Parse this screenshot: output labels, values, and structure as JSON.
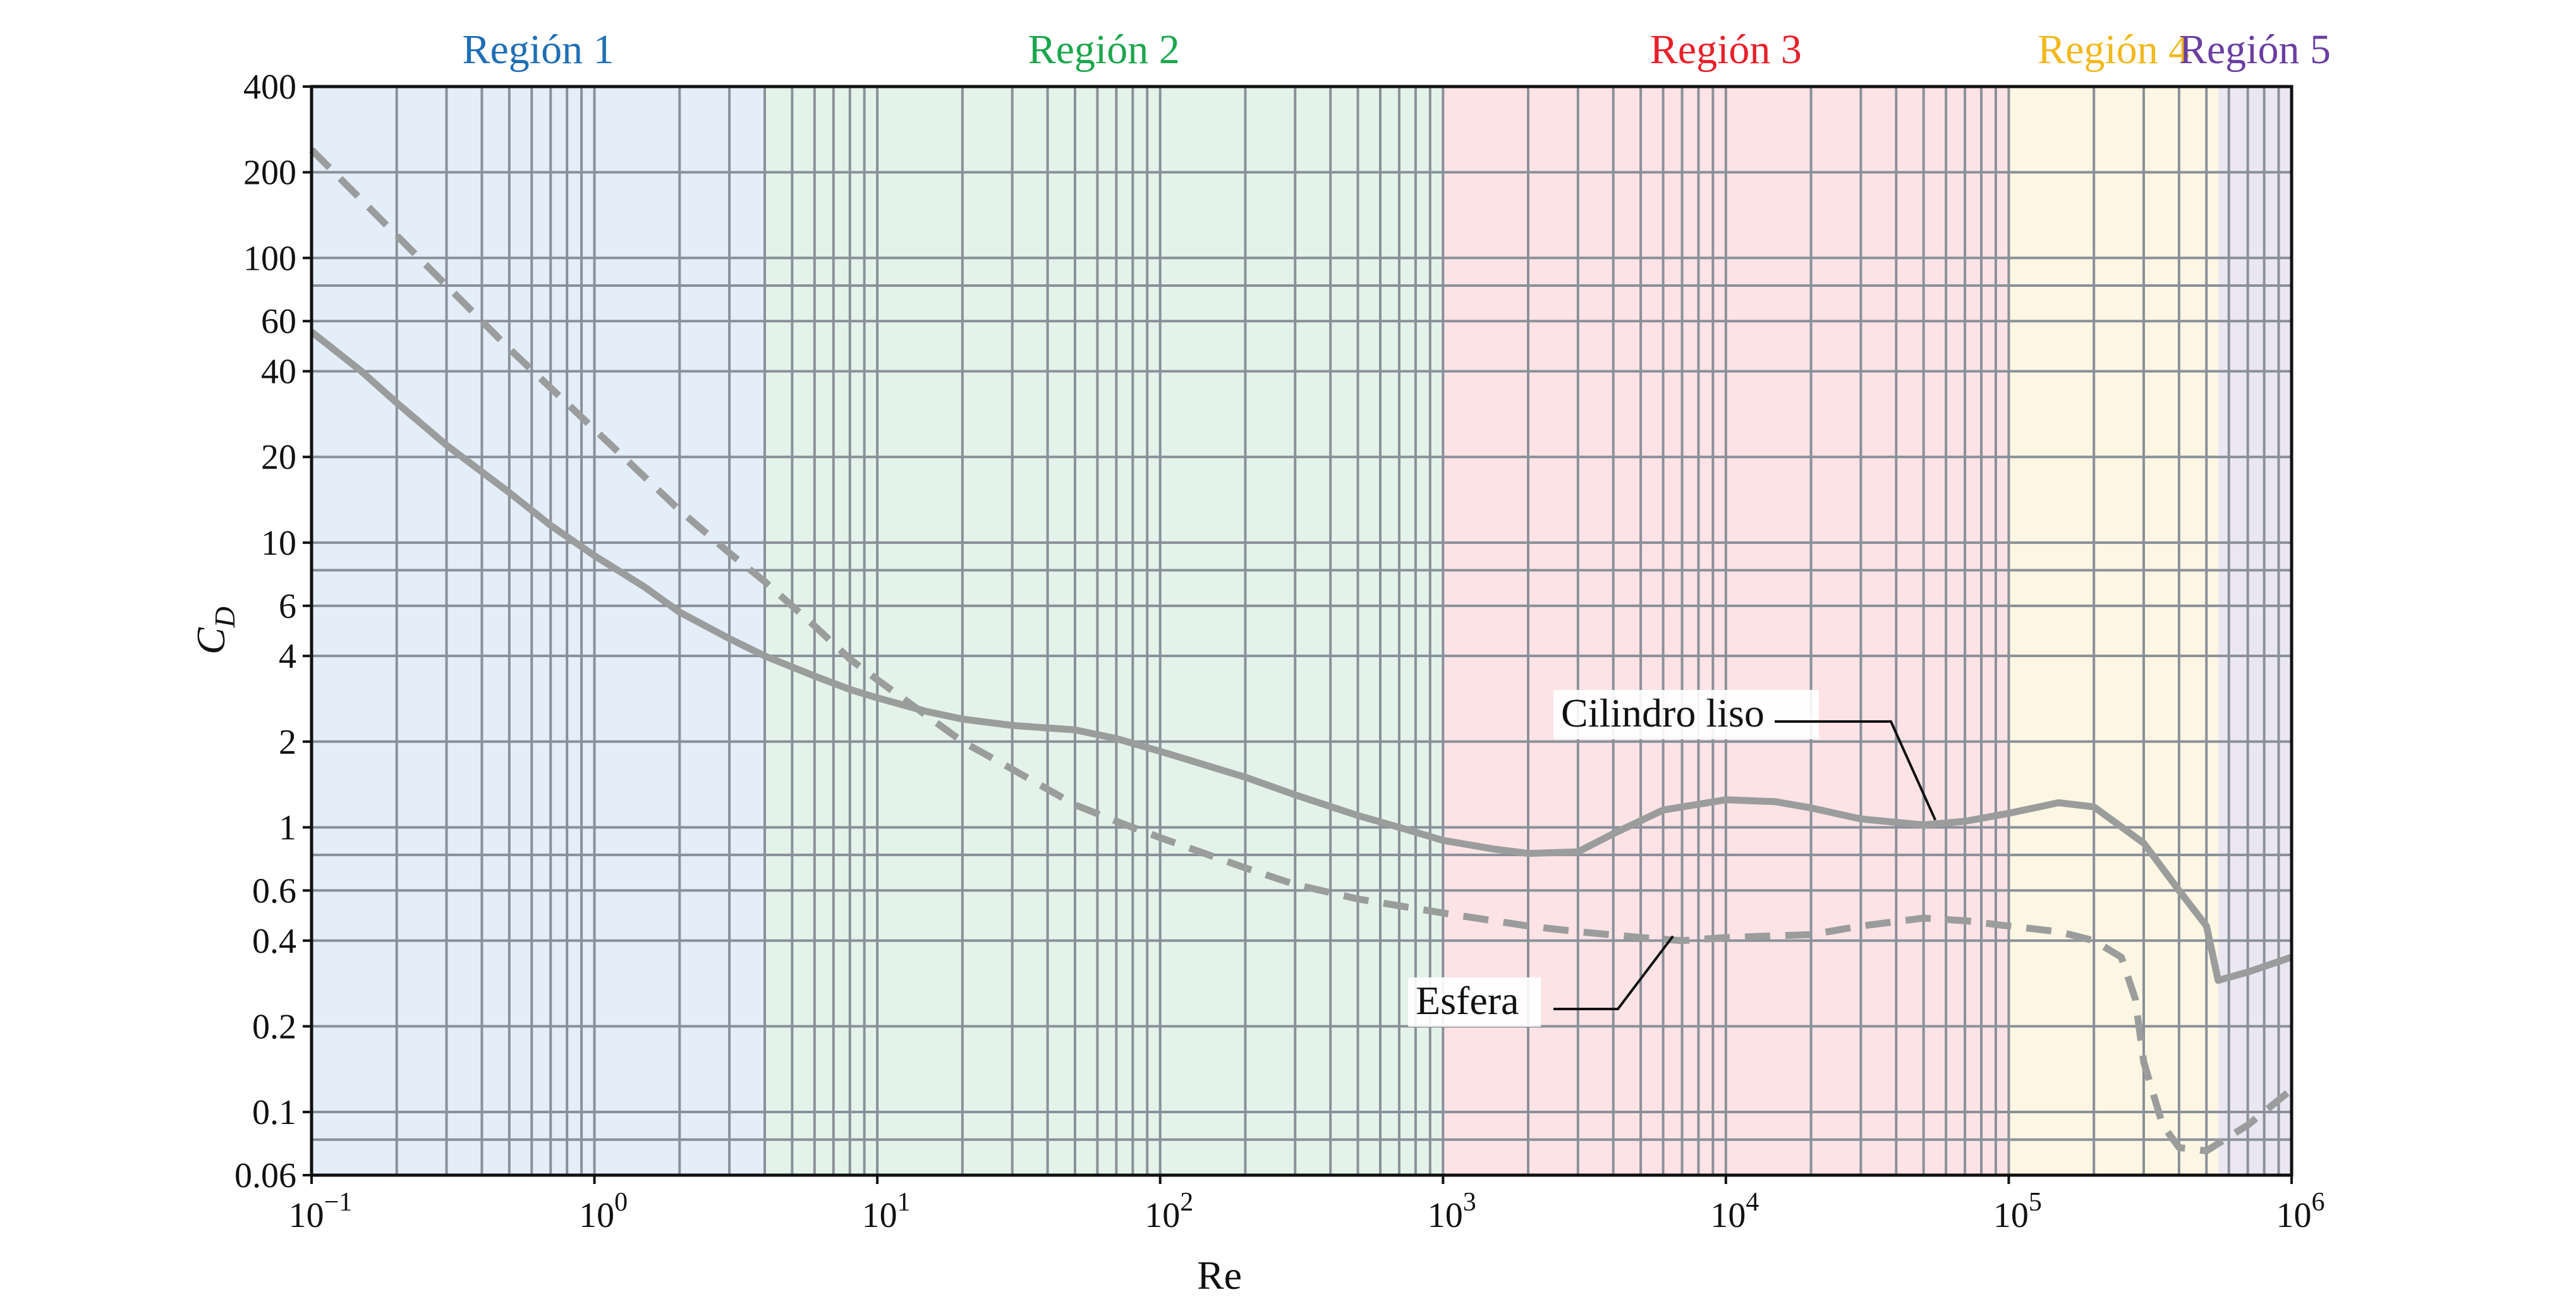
{
  "chart_data": {
    "type": "line",
    "x_scale": "log",
    "y_scale": "log",
    "xlabel": "Re",
    "ylabel": {
      "main": "C",
      "sub": "D"
    },
    "xlim": [
      0.1,
      1000000
    ],
    "ylim": [
      0.06,
      400
    ],
    "grid": true,
    "x_ticks": [
      {
        "value": 0.1,
        "base": "10",
        "exp": "−1"
      },
      {
        "value": 1,
        "base": "10",
        "exp": "0"
      },
      {
        "value": 10,
        "base": "10",
        "exp": "1"
      },
      {
        "value": 100,
        "base": "10",
        "exp": "2"
      },
      {
        "value": 1000,
        "base": "10",
        "exp": "3"
      },
      {
        "value": 10000,
        "base": "10",
        "exp": "4"
      },
      {
        "value": 100000,
        "base": "10",
        "exp": "5"
      },
      {
        "value": 1000000,
        "base": "10",
        "exp": "6"
      }
    ],
    "y_ticks": [
      {
        "value": 400,
        "label": "400"
      },
      {
        "value": 200,
        "label": "200"
      },
      {
        "value": 100,
        "label": "100"
      },
      {
        "value": 60,
        "label": "60"
      },
      {
        "value": 40,
        "label": "40"
      },
      {
        "value": 20,
        "label": "20"
      },
      {
        "value": 10,
        "label": "10"
      },
      {
        "value": 6,
        "label": "6"
      },
      {
        "value": 4,
        "label": "4"
      },
      {
        "value": 2,
        "label": "2"
      },
      {
        "value": 1,
        "label": "1"
      },
      {
        "value": 0.6,
        "label": "0.6"
      },
      {
        "value": 0.4,
        "label": "0.4"
      },
      {
        "value": 0.2,
        "label": "0.2"
      },
      {
        "value": 0.1,
        "label": "0.1"
      },
      {
        "value": 0.06,
        "label": "0.06"
      }
    ],
    "y_grid_values": [
      400,
      200,
      100,
      80,
      60,
      40,
      20,
      10,
      8,
      6,
      4,
      2,
      1,
      0.8,
      0.6,
      0.4,
      0.2,
      0.1,
      0.08,
      0.06
    ],
    "regions": [
      {
        "label": "Región 1",
        "from": 0.1,
        "to": 4,
        "fill": "#e4eef8",
        "text_color": "#1f6fb5"
      },
      {
        "label": "Región 2",
        "from": 4,
        "to": 1000,
        "fill": "#e3f3ea",
        "text_color": "#1da64e"
      },
      {
        "label": "Región 3",
        "from": 1000,
        "to": 100000,
        "fill": "#fde3e6",
        "text_color": "#e8202a"
      },
      {
        "label": "Región 4",
        "from": 100000,
        "to": 550000,
        "fill": "#fdf6e3",
        "text_color": "#f2b81d"
      },
      {
        "label": "Región 5",
        "from": 550000,
        "to": 1000000,
        "fill": "#ebe7f2",
        "text_color": "#6a3fa0"
      }
    ],
    "series": [
      {
        "name": "Cilindro liso",
        "style": "solid",
        "color": "#9a9d9c",
        "points": [
          [
            0.1,
            55
          ],
          [
            0.15,
            40
          ],
          [
            0.2,
            31
          ],
          [
            0.3,
            22
          ],
          [
            0.5,
            15
          ],
          [
            0.7,
            11.5
          ],
          [
            1,
            9
          ],
          [
            1.5,
            7
          ],
          [
            2,
            5.7
          ],
          [
            3,
            4.6
          ],
          [
            4,
            4
          ],
          [
            6,
            3.4
          ],
          [
            8,
            3.05
          ],
          [
            10,
            2.85
          ],
          [
            15,
            2.55
          ],
          [
            20,
            2.4
          ],
          [
            30,
            2.28
          ],
          [
            50,
            2.2
          ],
          [
            70,
            2.05
          ],
          [
            100,
            1.85
          ],
          [
            200,
            1.5
          ],
          [
            300,
            1.3
          ],
          [
            500,
            1.1
          ],
          [
            700,
            1.0
          ],
          [
            1000,
            0.9
          ],
          [
            1500,
            0.84
          ],
          [
            2000,
            0.81
          ],
          [
            3000,
            0.82
          ],
          [
            4000,
            0.95
          ],
          [
            6000,
            1.15
          ],
          [
            10000,
            1.25
          ],
          [
            15000,
            1.23
          ],
          [
            20000,
            1.17
          ],
          [
            30000,
            1.07
          ],
          [
            50000,
            1.02
          ],
          [
            70000,
            1.05
          ],
          [
            100000,
            1.12
          ],
          [
            150000,
            1.22
          ],
          [
            200000,
            1.18
          ],
          [
            300000,
            0.88
          ],
          [
            400000,
            0.6
          ],
          [
            500000,
            0.45
          ],
          [
            550000,
            0.29
          ],
          [
            700000,
            0.31
          ],
          [
            1000000,
            0.35
          ]
        ]
      },
      {
        "name": "Esfera",
        "style": "dashed",
        "color": "#9a9d9c",
        "points": [
          [
            0.1,
            240
          ],
          [
            0.2,
            120
          ],
          [
            0.3,
            80
          ],
          [
            0.5,
            48
          ],
          [
            1,
            25
          ],
          [
            2,
            13
          ],
          [
            3,
            9.2
          ],
          [
            4,
            7.3
          ],
          [
            6,
            5.1
          ],
          [
            8,
            3.9
          ],
          [
            10,
            3.3
          ],
          [
            20,
            2.0
          ],
          [
            30,
            1.6
          ],
          [
            50,
            1.2
          ],
          [
            70,
            1.05
          ],
          [
            100,
            0.92
          ],
          [
            200,
            0.72
          ],
          [
            300,
            0.63
          ],
          [
            500,
            0.56
          ],
          [
            700,
            0.53
          ],
          [
            1000,
            0.5
          ],
          [
            2000,
            0.45
          ],
          [
            3000,
            0.43
          ],
          [
            5000,
            0.41
          ],
          [
            7000,
            0.4
          ],
          [
            10000,
            0.41
          ],
          [
            20000,
            0.42
          ],
          [
            30000,
            0.45
          ],
          [
            50000,
            0.48
          ],
          [
            70000,
            0.47
          ],
          [
            100000,
            0.45
          ],
          [
            150000,
            0.43
          ],
          [
            200000,
            0.4
          ],
          [
            250000,
            0.35
          ],
          [
            280000,
            0.25
          ],
          [
            300000,
            0.15
          ],
          [
            350000,
            0.09
          ],
          [
            400000,
            0.075
          ],
          [
            500000,
            0.073
          ],
          [
            700000,
            0.09
          ],
          [
            1000000,
            0.12
          ]
        ]
      }
    ],
    "annotations": [
      {
        "text": "Cilindro liso",
        "series": "Cilindro liso"
      },
      {
        "text": "Esfera",
        "series": "Esfera"
      }
    ]
  }
}
